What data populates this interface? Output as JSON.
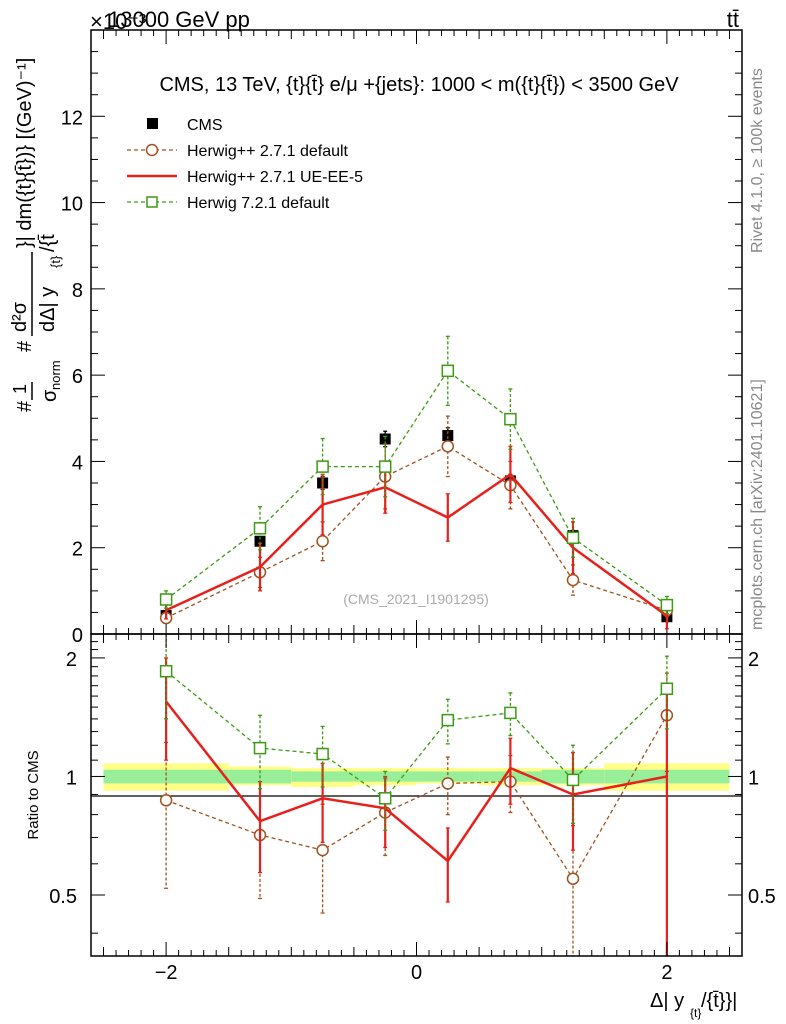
{
  "header": {
    "energy_label": "13000 GeV pp",
    "exponent_label": "×10⁻³",
    "process_label": "tt̄"
  },
  "side_labels": {
    "rivet": "Rivet 4.1.0, ≥ 100k events",
    "mcplots": "mcplots.cern.ch [arXiv:2401.10621]"
  },
  "watermark": "(CMS_2021_I1901295)",
  "chart_data": [
    {
      "type": "line",
      "title": "CMS, 13 TeV, {t}{t̄} e/μ +{jets}: 1000 < m({t}{t̄}) < 3500 GeV",
      "ylabel": "#1/σnorm # dσ / dΔ|y_t/{t̄}| dm({t}{t̄})} [(GeV)⁻¹]",
      "ylabel_parts": {
        "hash1": "#",
        "one": "1",
        "sigma_norm": "σ",
        "norm": "norm",
        "hash2": "#",
        "dsigma": "d²σ",
        "dy": "dΔ| y",
        "dy_sub": "{t}",
        "dy_tail": "/{t̄",
        "dm": "}| dm({t}{t̄})} [(GeV)⁻¹]"
      },
      "ylim": [
        0,
        14
      ],
      "yticks": [
        0,
        2,
        4,
        6,
        8,
        10,
        12
      ],
      "x": [
        -2.0,
        -1.25,
        -0.75,
        -0.25,
        0.25,
        0.75,
        1.25,
        2.0
      ],
      "x_bins": [
        [
          -2.5,
          -1.5
        ],
        [
          -1.5,
          -1.0
        ],
        [
          -1.0,
          -0.5
        ],
        [
          -0.5,
          0.0
        ],
        [
          0.0,
          0.5
        ],
        [
          0.5,
          1.0
        ],
        [
          1.0,
          1.5
        ],
        [
          1.5,
          2.5
        ]
      ],
      "legend_position": "top-left",
      "series": [
        {
          "name": "CMS",
          "marker": "filled-square",
          "color": "#000000",
          "values": [
            0.43,
            2.15,
            3.5,
            4.52,
            4.6,
            3.55,
            2.28,
            0.4
          ],
          "errors": [
            0.08,
            0.1,
            0.15,
            0.18,
            0.18,
            0.15,
            0.12,
            0.05
          ]
        },
        {
          "name": "Herwig++ 2.7.1 default",
          "marker": "open-circle",
          "line": "dashed",
          "color": "#a0521e",
          "values": [
            0.37,
            1.43,
            2.15,
            3.65,
            4.35,
            3.45,
            1.25,
            0.55
          ],
          "errors": [
            0.12,
            0.35,
            0.45,
            0.75,
            0.7,
            0.55,
            0.35,
            0.15
          ]
        },
        {
          "name": "Herwig++ 2.7.1 UE-EE-5",
          "marker": "none",
          "line": "solid",
          "color": "#e8201c",
          "values": [
            0.55,
            1.55,
            3.0,
            3.4,
            2.7,
            3.7,
            2.0,
            0.42
          ],
          "errors": [
            0.2,
            0.55,
            0.7,
            0.6,
            0.55,
            0.65,
            0.6,
            0.3
          ]
        },
        {
          "name": "Herwig 7.2.1 default",
          "marker": "open-square",
          "line": "dashed",
          "color": "#3c9a14",
          "values": [
            0.8,
            2.45,
            3.88,
            3.88,
            6.1,
            4.98,
            2.23,
            0.67
          ],
          "errors": [
            0.2,
            0.5,
            0.65,
            0.7,
            0.8,
            0.7,
            0.45,
            0.2
          ]
        }
      ]
    },
    {
      "type": "line",
      "ylabel": "Ratio to CMS",
      "xlabel": "Δ| y",
      "xlabel_sub": "{t}",
      "xlabel_tail": "/{t̄}}|",
      "ylim": [
        0.35,
        2.3
      ],
      "yticks": [
        0.5,
        1,
        2
      ],
      "ytick_labels": [
        "0.5",
        "1",
        "2"
      ],
      "xlim": [
        -2.6,
        2.6
      ],
      "xticks": [
        -2,
        0,
        2
      ],
      "xtick_labels": [
        "−2",
        "0",
        "2"
      ],
      "band_inner": [
        [
          0.96,
          1.04
        ],
        [
          0.96,
          1.04
        ],
        [
          0.97,
          1.03
        ],
        [
          0.97,
          1.03
        ],
        [
          0.97,
          1.03
        ],
        [
          0.97,
          1.03
        ],
        [
          0.96,
          1.04
        ],
        [
          0.96,
          1.04
        ]
      ],
      "band_outer": [
        [
          0.92,
          1.08
        ],
        [
          0.95,
          1.06
        ],
        [
          0.94,
          1.05
        ],
        [
          0.95,
          1.05
        ],
        [
          0.96,
          1.05
        ],
        [
          0.95,
          1.05
        ],
        [
          0.95,
          1.05
        ],
        [
          0.92,
          1.08
        ]
      ],
      "series": [
        {
          "name": "Herwig++ 2.7.1 default",
          "color": "#a0521e",
          "values": [
            0.87,
            0.71,
            0.65,
            0.81,
            0.96,
            0.97,
            0.55,
            1.43
          ],
          "errors": [
            0.35,
            0.22,
            0.2,
            0.18,
            0.16,
            0.16,
            0.2,
            0.4
          ]
        },
        {
          "name": "Herwig++ 2.7.1 UE-EE-5",
          "color": "#e8201c",
          "values": [
            1.55,
            0.77,
            0.88,
            0.83,
            0.61,
            1.05,
            0.9,
            1.0
          ],
          "errors": [
            0.45,
            0.2,
            0.2,
            0.17,
            0.13,
            0.2,
            0.25,
            0.65
          ]
        },
        {
          "name": "Herwig 7.2.1 default",
          "color": "#3c9a14",
          "values": [
            1.85,
            1.18,
            1.14,
            0.88,
            1.39,
            1.45,
            0.98,
            1.67
          ],
          "errors": [
            0.45,
            0.25,
            0.2,
            0.15,
            0.18,
            0.18,
            0.22,
            0.35
          ]
        }
      ]
    }
  ]
}
